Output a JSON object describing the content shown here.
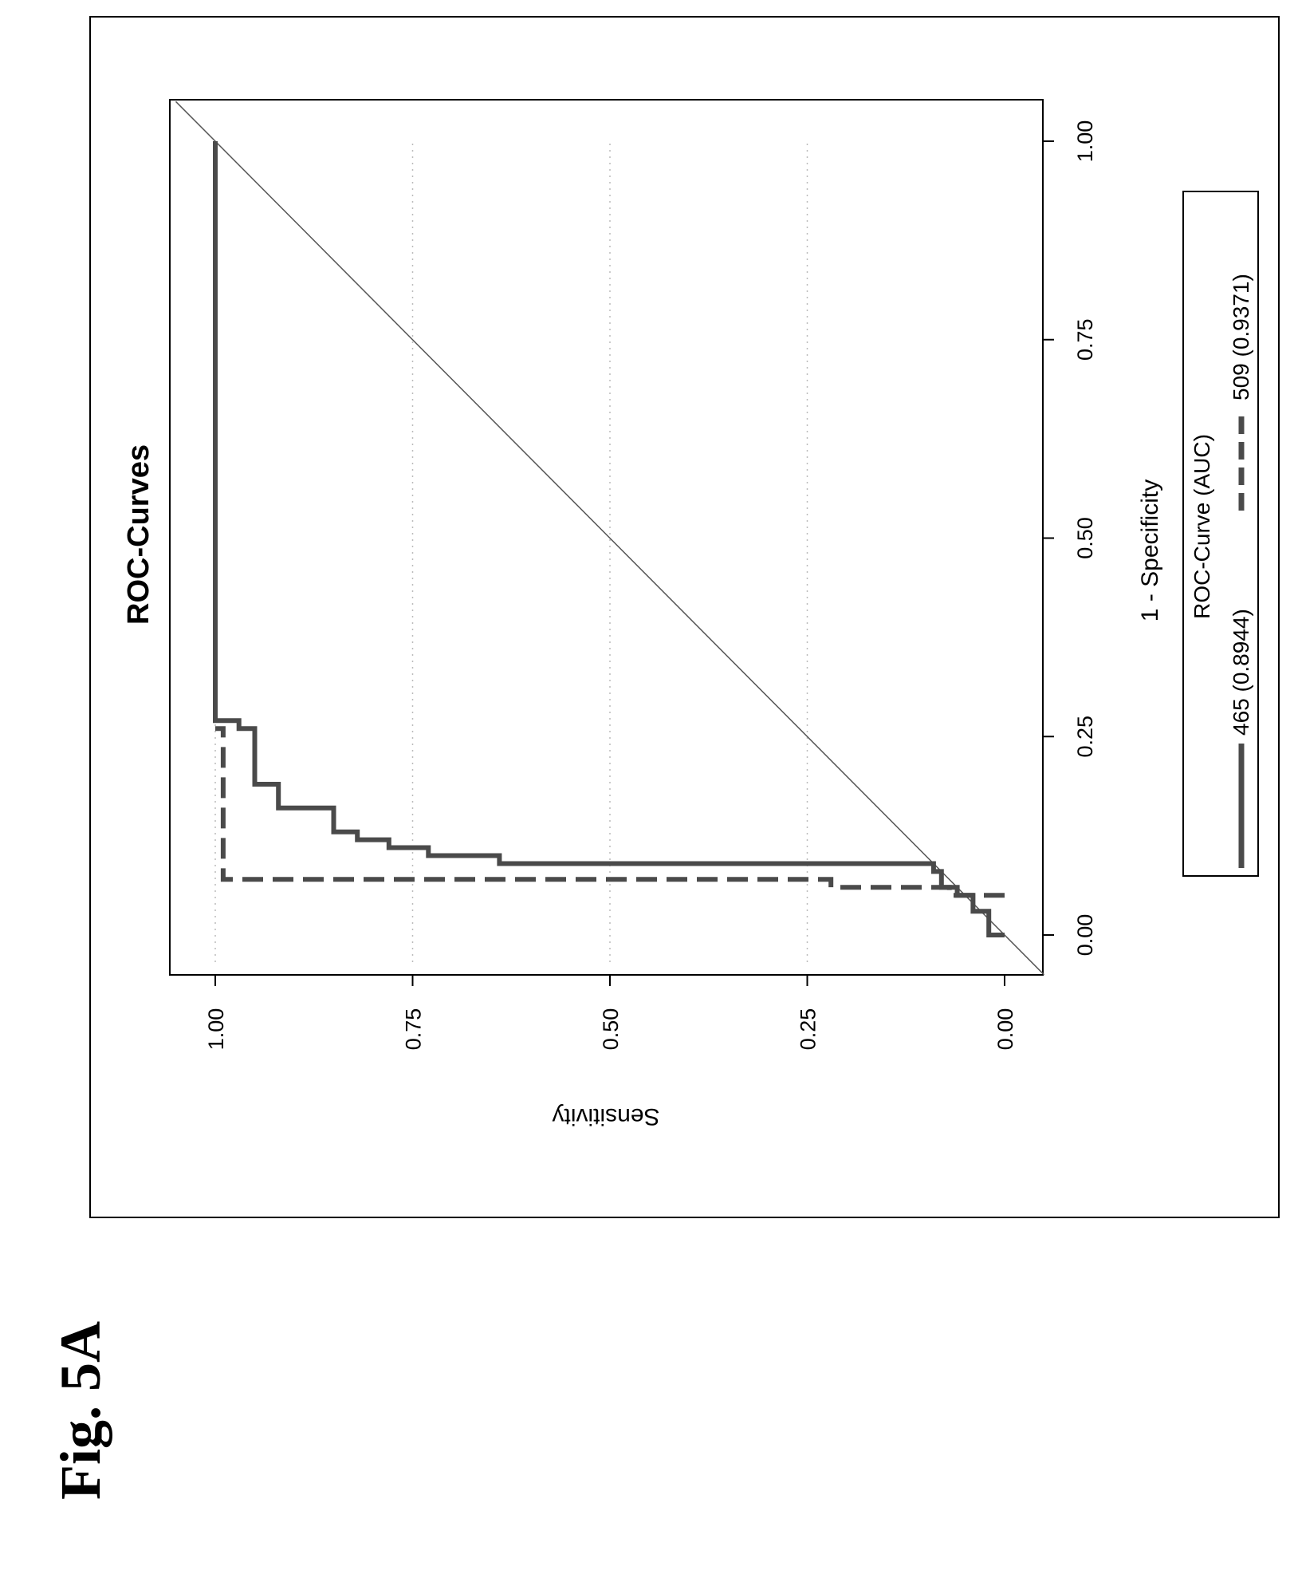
{
  "figure_label": "Fig. 5A",
  "chart_data": {
    "type": "line",
    "title": "ROC-Curves",
    "xlabel": "1 - Specificity",
    "ylabel": "Sensitivity",
    "xlim": [
      0,
      1
    ],
    "ylim": [
      0,
      1
    ],
    "xticks": [
      "0.00",
      "0.25",
      "0.50",
      "0.75",
      "1.00"
    ],
    "yticks": [
      "0.00",
      "0.25",
      "0.50",
      "0.75",
      "1.00"
    ],
    "grid": "dotted",
    "legend": {
      "title": "ROC-Curve (AUC)",
      "position": "bottom",
      "entries": [
        "465  (0.8944)",
        "509  (0.9371)"
      ]
    },
    "series": [
      {
        "name": "465  (0.8944)",
        "style": "solid",
        "x": [
          0.0,
          0.0,
          0.03,
          0.03,
          0.05,
          0.05,
          0.06,
          0.06,
          0.08,
          0.08,
          0.09,
          0.09,
          0.1,
          0.1,
          0.11,
          0.11,
          0.12,
          0.12,
          0.13,
          0.13,
          0.16,
          0.16,
          0.19,
          0.19,
          0.26,
          0.26,
          0.27,
          0.27,
          1.0
        ],
        "y": [
          0.0,
          0.02,
          0.02,
          0.04,
          0.04,
          0.06,
          0.06,
          0.08,
          0.08,
          0.09,
          0.09,
          0.64,
          0.64,
          0.73,
          0.73,
          0.78,
          0.78,
          0.82,
          0.82,
          0.85,
          0.85,
          0.92,
          0.92,
          0.95,
          0.95,
          0.97,
          0.97,
          1.0,
          1.0
        ]
      },
      {
        "name": "509  (0.9371)",
        "style": "dashed",
        "x": [
          0.05,
          0.05,
          0.06,
          0.06,
          0.07,
          0.07,
          0.26,
          0.26
        ],
        "y": [
          0.0,
          0.07,
          0.07,
          0.22,
          0.22,
          0.99,
          0.99,
          1.0
        ]
      },
      {
        "name": "",
        "style": "thin",
        "x": [
          -0.05,
          1.05
        ],
        "y": [
          -0.05,
          1.05
        ]
      }
    ]
  },
  "colors": {
    "line": "#4a4a4a",
    "axis": "#000000",
    "grid": "#bbbbbb"
  }
}
